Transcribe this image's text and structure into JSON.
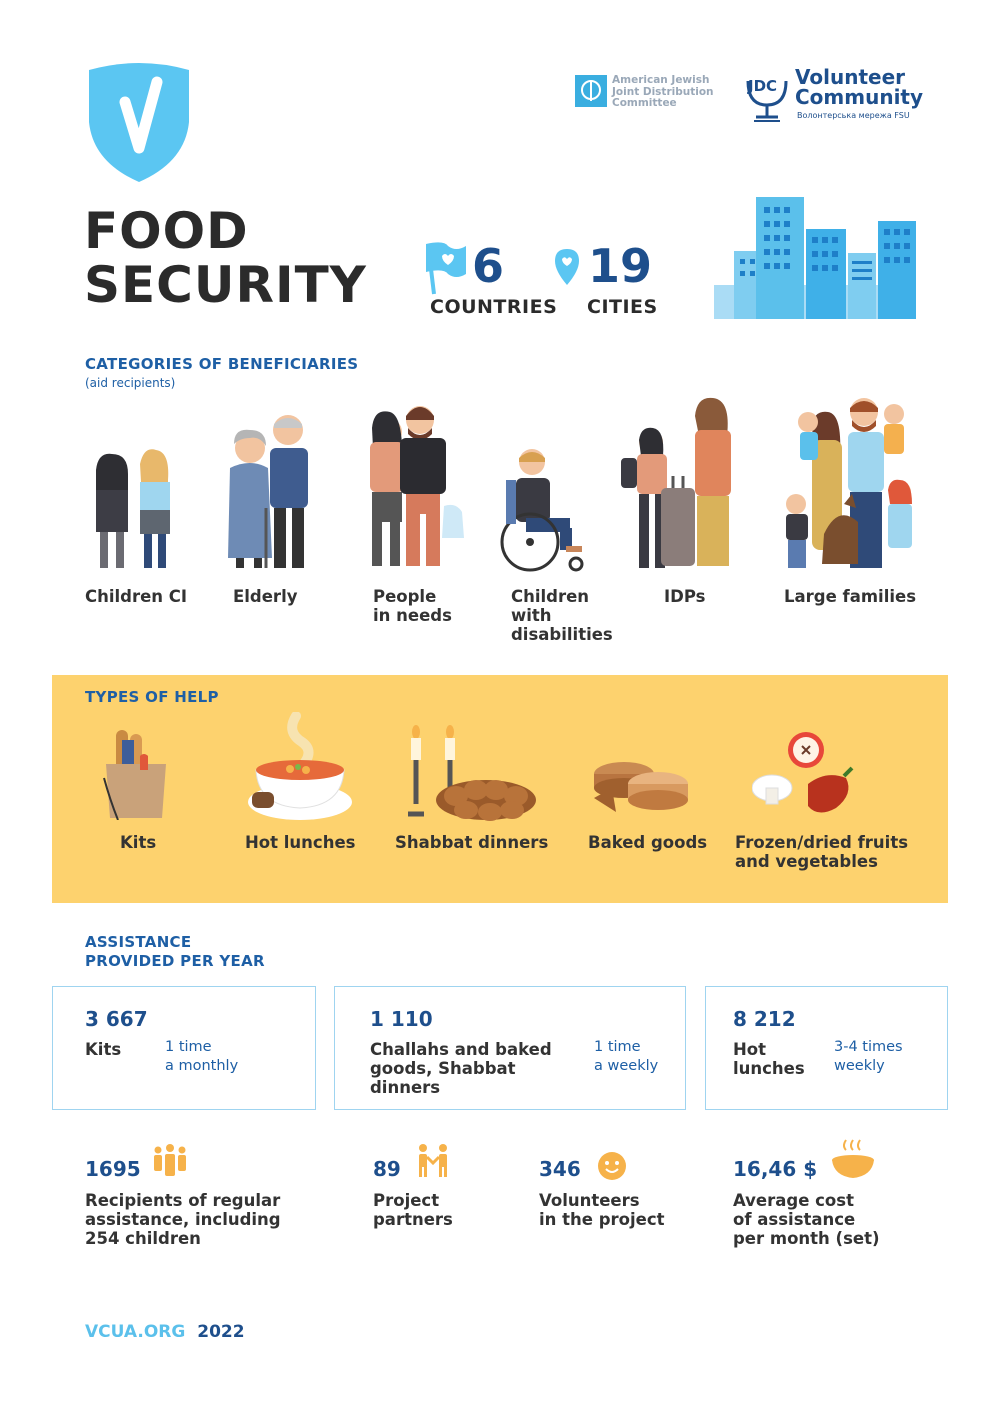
{
  "header": {
    "title_line1": "FOOD",
    "title_line2": "SECURITY",
    "jdc_logo_text": [
      "American Jewish",
      "Joint Distribution",
      "Committee"
    ],
    "volunteer_logo_line1": "Volunteer",
    "volunteer_logo_line2": "Community",
    "volunteer_logo_sub": "Волонтерська мережа FSU",
    "volunteer_logo_mark": "JDC"
  },
  "stats": {
    "countries_value": "6",
    "countries_label": "COUNTRIES",
    "cities_value": "19",
    "cities_label": "CITIES"
  },
  "beneficiaries": {
    "heading": "CATEGORIES OF BENEFICIARIES",
    "subheading": "(aid recipients)",
    "items": [
      {
        "label_lines": [
          "Children CI"
        ],
        "icon": "children-figures"
      },
      {
        "label_lines": [
          "Elderly"
        ],
        "icon": "elderly-couple"
      },
      {
        "label_lines": [
          "People",
          "in needs"
        ],
        "icon": "people-couple"
      },
      {
        "label_lines": [
          "Children",
          "with",
          "disabilities"
        ],
        "icon": "wheelchair-child"
      },
      {
        "label_lines": [
          "IDPs"
        ],
        "icon": "family-with-suitcase"
      },
      {
        "label_lines": [
          "Large families"
        ],
        "icon": "large-family"
      }
    ]
  },
  "help": {
    "heading": "TYPES OF HELP",
    "items": [
      {
        "label_lines": [
          "Kits"
        ],
        "icon": "grocery-bag-icon"
      },
      {
        "label_lines": [
          "Hot lunches"
        ],
        "icon": "soup-bowl-icon"
      },
      {
        "label_lines": [
          "Shabbat dinners"
        ],
        "icon": "candles-challah-icon"
      },
      {
        "label_lines": [
          "Baked goods"
        ],
        "icon": "pastry-icon"
      },
      {
        "label_lines": [
          "Frozen/dried fruits",
          "and vegetables"
        ],
        "icon": "fruits-vegetables-icon"
      }
    ],
    "background_color": "#fdd26e"
  },
  "assistance": {
    "heading_line1": "ASSISTANCE",
    "heading_line2": "PROVIDED PER YEAR",
    "boxes": [
      {
        "value": "3 667",
        "label_lines": [
          "Kits"
        ],
        "freq_lines": [
          "1 time",
          "a monthly"
        ]
      },
      {
        "value": "1 110",
        "label_lines": [
          "Challahs and baked",
          "goods, Shabbat",
          "dinners"
        ],
        "freq_lines": [
          "1 time",
          "a weekly"
        ]
      },
      {
        "value": "8 212",
        "label_lines": [
          "Hot",
          "lunches"
        ],
        "freq_lines": [
          "3-4 times",
          "weekly"
        ]
      }
    ]
  },
  "bottom_stats": [
    {
      "value": "1695",
      "label_lines": [
        "Recipients of regular",
        "assistance, including",
        "254 children"
      ],
      "icon": "group-people-icon"
    },
    {
      "value": "89",
      "label_lines": [
        "Project",
        "partners"
      ],
      "icon": "partners-icon"
    },
    {
      "value": "346",
      "label_lines": [
        "Volunteers",
        "in the project"
      ],
      "icon": "smiley-icon"
    },
    {
      "value": "16,46 $",
      "label_lines": [
        "Average cost",
        "of assistance",
        "per month (set)"
      ],
      "icon": "hot-bowl-icon"
    }
  ],
  "footer": {
    "site": "VCUA.ORG",
    "year": "2022"
  },
  "colors": {
    "navy": "#1e4f8c",
    "sky": "#5bc0eb",
    "box_border": "#9fd4f0"
  }
}
